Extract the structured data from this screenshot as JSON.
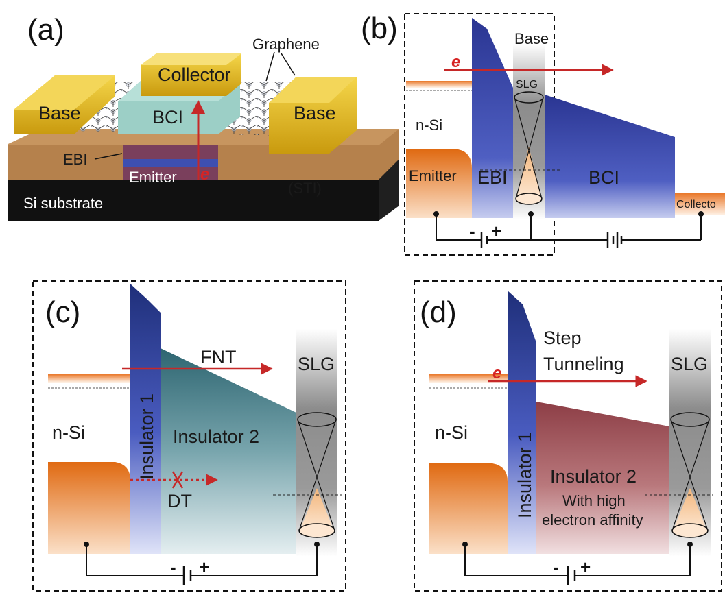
{
  "panels": {
    "a": {
      "label": "(a)",
      "graphene": "Graphene",
      "collector": "Collector",
      "base_left": "Base",
      "base_right": "Base",
      "bci": "BCI",
      "ebi": "EBI",
      "emitter": "Emitter",
      "e": "e",
      "sti": "(STI)",
      "substrate": "Si substrate"
    },
    "b": {
      "label": "(b)",
      "base": "Base",
      "e": "e",
      "slg": "SLG",
      "nsi": "n-Si",
      "emitter": "Emitter",
      "ebi": "EBI",
      "bci": "BCI",
      "collector": "Collecto",
      "minus": "-",
      "plus": "+"
    },
    "c": {
      "label": "(c)",
      "fnt": "FNT",
      "slg": "SLG",
      "nsi": "n-Si",
      "insulator1": "Insulator 1",
      "insulator2": "Insulator 2",
      "dt": "DT",
      "minus": "-",
      "plus": "+"
    },
    "d": {
      "label": "(d)",
      "step": "Step",
      "tunneling": "Tunneling",
      "e": "e",
      "slg": "SLG",
      "nsi": "n-Si",
      "insulator1": "Insulator 1",
      "insulator2": "Insulator 2",
      "affinity1": "With high",
      "affinity2": "electron affinity",
      "minus": "-",
      "plus": "+"
    }
  },
  "colors": {
    "emitter_orange": "#e8731f",
    "insulator_blue": "#2f3f9a",
    "bci_teal": "#3d7680",
    "insulator_red": "#9a4a52",
    "gold": "#e0b21c",
    "arrow_red": "#c62828"
  }
}
